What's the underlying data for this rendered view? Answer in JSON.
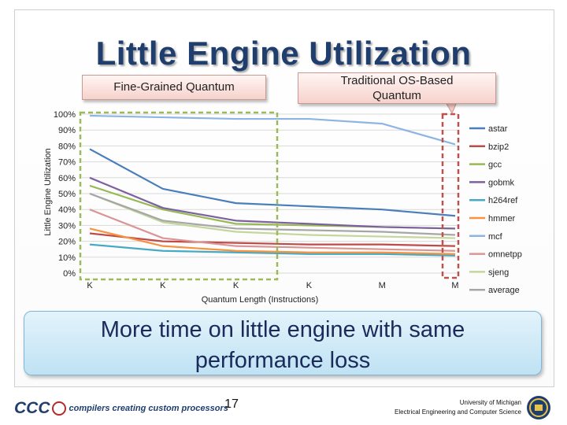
{
  "slide": {
    "title": "Little Engine Utilization",
    "callout_fine": "Fine-Grained Quantum",
    "callout_traditional_line1": "Traditional OS-Based",
    "callout_traditional_line2": "Quantum",
    "takeaway_line1": "More time on little engine with same",
    "takeaway_line2": "performance loss",
    "page_number": "17",
    "footer_logo_text": "CCC",
    "footer_tagline": "compilers creating custom processors",
    "university_line1": "University of Michigan",
    "university_line2": "Electrical Engineering and Computer Science"
  },
  "chart_data": {
    "type": "line",
    "title": "",
    "xlabel": "Quantum Length (Instructions)",
    "ylabel": "Little Engine Utilization",
    "categories": [
      "K",
      "K",
      "K",
      "K",
      "M",
      "M"
    ],
    "ylim": [
      0,
      100
    ],
    "yticks": [
      "0%",
      "10%",
      "20%",
      "30%",
      "40%",
      "50%",
      "60%",
      "70%",
      "80%",
      "90%",
      "100%"
    ],
    "series": [
      {
        "name": "astar",
        "color": "#4a7ebb",
        "values": [
          78,
          53,
          44,
          42,
          40,
          36
        ]
      },
      {
        "name": "bzip2",
        "color": "#be4b48",
        "values": [
          25,
          20,
          19,
          18,
          18,
          17
        ]
      },
      {
        "name": "gcc",
        "color": "#98b954",
        "values": [
          55,
          40,
          31,
          30,
          29,
          28
        ]
      },
      {
        "name": "gobmk",
        "color": "#7d60a0",
        "values": [
          60,
          41,
          33,
          31,
          29,
          28
        ]
      },
      {
        "name": "h264ref",
        "color": "#46aac5",
        "values": [
          18,
          14,
          13,
          12,
          12,
          11
        ]
      },
      {
        "name": "hmmer",
        "color": "#f69240",
        "values": [
          28,
          17,
          14,
          13,
          13,
          12
        ]
      },
      {
        "name": "mcf",
        "color": "#8eb4e3",
        "values": [
          99,
          98,
          97,
          97,
          94,
          81
        ]
      },
      {
        "name": "omnetpp",
        "color": "#d99694",
        "values": [
          40,
          22,
          17,
          16,
          15,
          14
        ]
      },
      {
        "name": "sjeng",
        "color": "#c3d69b",
        "values": [
          50,
          32,
          26,
          24,
          23,
          22
        ]
      },
      {
        "name": "average",
        "color": "#a6a6a6",
        "values": [
          50,
          33,
          28,
          27,
          26,
          24
        ]
      }
    ]
  }
}
